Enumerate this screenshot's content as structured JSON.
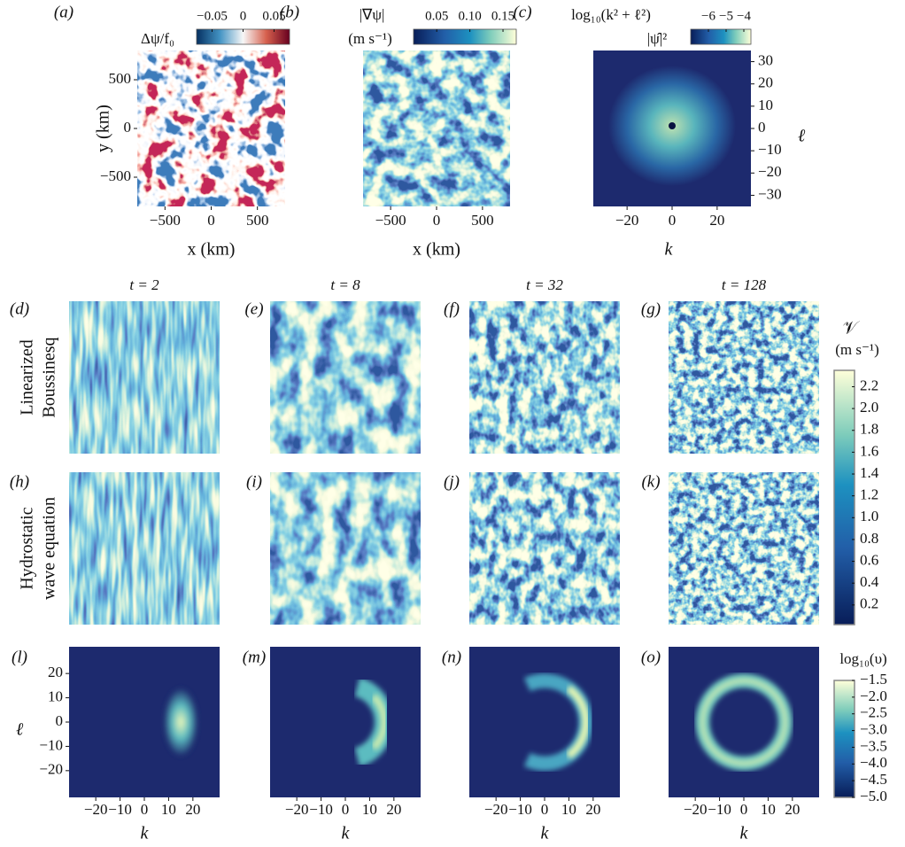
{
  "top_panels": [
    {
      "label": "(a)",
      "xlabel": "x (km)",
      "ylabel": "y (km)",
      "xlim": [
        -800,
        800
      ],
      "ylim": [
        -800,
        800
      ],
      "xticks": [
        {
          "value": -500,
          "label": "−500"
        },
        0,
        500
      ],
      "yticks": [
        500,
        0,
        {
          "value": -500,
          "label": "−500"
        }
      ],
      "colorbar": {
        "title": [
          "Δψ/f₀"
        ],
        "lim": [
          -0.075,
          0.075
        ],
        "ticks": [
          {
            "value": -0.05,
            "label": "−0.05"
          },
          0,
          0.05
        ]
      }
    },
    {
      "label": "(b)",
      "xlabel": "x (km)",
      "xlim": [
        -800,
        800
      ],
      "xticks": [
        {
          "value": -500,
          "label": "−500"
        },
        0,
        500
      ],
      "colorbar": {
        "title": [
          "|∇ψ|",
          "(m s⁻¹)"
        ],
        "lim": [
          0.015,
          0.17
        ],
        "ticks": [
          0.05,
          {
            "value": 0.1,
            "label": "0.10"
          },
          0.15
        ]
      }
    },
    {
      "label": "(c)",
      "xlabel": "k",
      "ylabel": "ℓ",
      "xlim": [
        -35,
        35
      ],
      "ylim": [
        -35,
        35
      ],
      "xticks": [
        {
          "value": -20,
          "label": "−20"
        },
        0,
        20
      ],
      "yticks": [
        30,
        20,
        10,
        0,
        {
          "value": -10,
          "label": "−10"
        },
        {
          "value": -20,
          "label": "−20"
        },
        {
          "value": -30,
          "label": "−30"
        }
      ],
      "colorbar": {
        "title": [
          "log₁₀(k² + ℓ²)",
          "|ψ̂|²"
        ],
        "lim": [
          -7,
          -3.6
        ],
        "ticks": [
          {
            "value": -6,
            "label": "−6"
          },
          {
            "value": -5,
            "label": "−5"
          },
          {
            "value": -4,
            "label": "−4"
          }
        ]
      }
    }
  ],
  "time_labels": [
    "t = 2",
    "t = 8",
    "t = 32",
    "t = 128"
  ],
  "row_labels": [
    [
      "Linearized",
      "Boussinesq"
    ],
    [
      "Hydrostatic",
      "wave equation"
    ]
  ],
  "panel_labels": [
    [
      "(d)",
      "(e)",
      "(f)",
      "(g)"
    ],
    [
      "(h)",
      "(i)",
      "(j)",
      "(k)"
    ]
  ],
  "spectrum_panels": {
    "labels": [
      "(l)",
      "(m)",
      "(n)",
      "(o)"
    ],
    "xlabel": "k",
    "ylabel": "ℓ",
    "xlim": [
      -31,
      31
    ],
    "ylim": [
      -31,
      31
    ],
    "xticks": [
      {
        "value": -20,
        "label": "−20"
      },
      {
        "value": -10,
        "label": "−10"
      },
      0,
      10,
      20
    ],
    "yticks": [
      20,
      10,
      0,
      {
        "value": -10,
        "label": "−10"
      },
      {
        "value": -20,
        "label": "−20"
      }
    ]
  },
  "speed_colorbar": {
    "title": [
      "𝒱",
      "(m s⁻¹)"
    ],
    "lim": [
      0.02,
      2.35
    ],
    "ticks": [
      0.2,
      0.4,
      0.6,
      0.8,
      {
        "value": 1,
        "label": "1.0"
      },
      1.2,
      1.4,
      1.6,
      1.8,
      {
        "value": 2,
        "label": "2.0"
      },
      2.2
    ]
  },
  "spectrum_colorbar": {
    "title": [
      "log₁₀(υ)"
    ],
    "lim": [
      -5,
      -1.5
    ],
    "ticks": [
      {
        "value": -1.5,
        "label": "−1.5"
      },
      {
        "value": -2,
        "label": "−2.0"
      },
      {
        "value": -2.5,
        "label": "−2.5"
      },
      {
        "value": -3,
        "label": "−3.0"
      },
      {
        "value": -3.5,
        "label": "−3.5"
      },
      {
        "value": -4,
        "label": "−4.0"
      },
      {
        "value": -4.5,
        "label": "−4.5"
      },
      {
        "value": -5,
        "label": "−5.0"
      }
    ]
  }
}
